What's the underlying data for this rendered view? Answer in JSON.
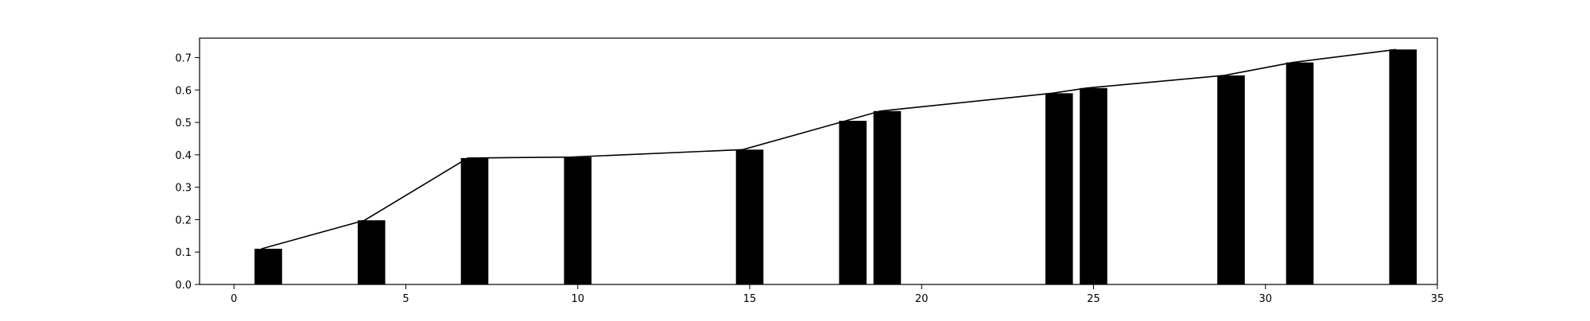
{
  "chart_data": {
    "type": "bar",
    "title": "",
    "xlabel": "",
    "ylabel": "",
    "xlim": [
      -1,
      35
    ],
    "ylim": [
      0,
      0.76
    ],
    "grid": false,
    "bar_width": 0.8,
    "xticks": [
      0,
      5,
      10,
      15,
      20,
      25,
      30,
      35
    ],
    "yticks": [
      0.0,
      0.1,
      0.2,
      0.3,
      0.4,
      0.5,
      0.6,
      0.7
    ],
    "xtick_labels": [
      "0",
      "5",
      "10",
      "15",
      "20",
      "25",
      "30",
      "35"
    ],
    "ytick_labels": [
      "0.0",
      "0.1",
      "0.2",
      "0.3",
      "0.4",
      "0.5",
      "0.6",
      "0.7"
    ],
    "series": [
      {
        "type": "bar",
        "color": "#000000",
        "x": [
          1,
          4,
          7,
          10,
          15,
          18,
          19,
          24,
          25,
          29,
          31,
          34
        ],
        "values": [
          0.11,
          0.198,
          0.39,
          0.393,
          0.416,
          0.505,
          0.535,
          0.59,
          0.606,
          0.645,
          0.685,
          0.725
        ]
      },
      {
        "type": "line",
        "color": "#000000",
        "x": [
          0.8,
          3.8,
          6.8,
          9.8,
          14.8,
          17.8,
          18.8,
          23.8,
          24.8,
          28.8,
          30.8,
          33.8
        ],
        "values": [
          0.11,
          0.198,
          0.39,
          0.393,
          0.416,
          0.505,
          0.535,
          0.59,
          0.606,
          0.645,
          0.685,
          0.725
        ]
      }
    ]
  }
}
